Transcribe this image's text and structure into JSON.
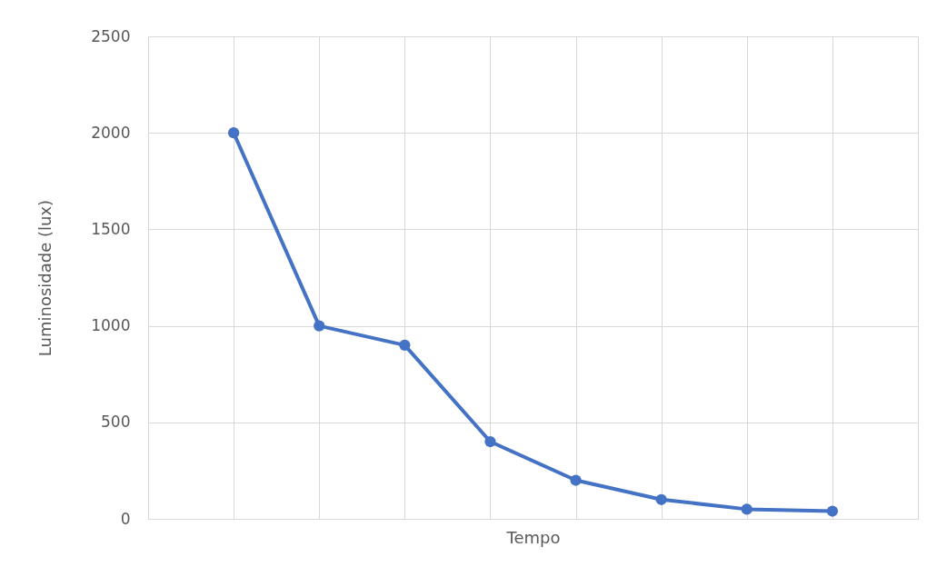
{
  "chart_data": {
    "type": "line",
    "xlabel": "Tempo",
    "ylabel": "Luminosidade (lux)",
    "categories": [
      null,
      null,
      null,
      null,
      null,
      null,
      null,
      null
    ],
    "series": [
      {
        "color": "#4472c4",
        "values": [
          2000,
          1000,
          900,
          400,
          200,
          100,
          50,
          40
        ]
      }
    ],
    "ylim": [
      0,
      2500
    ],
    "yticks": [
      0,
      500,
      1000,
      1500,
      2000,
      2500
    ],
    "grid": true,
    "tick_labels": "y",
    "marker": "circle",
    "line_style": "solid"
  }
}
